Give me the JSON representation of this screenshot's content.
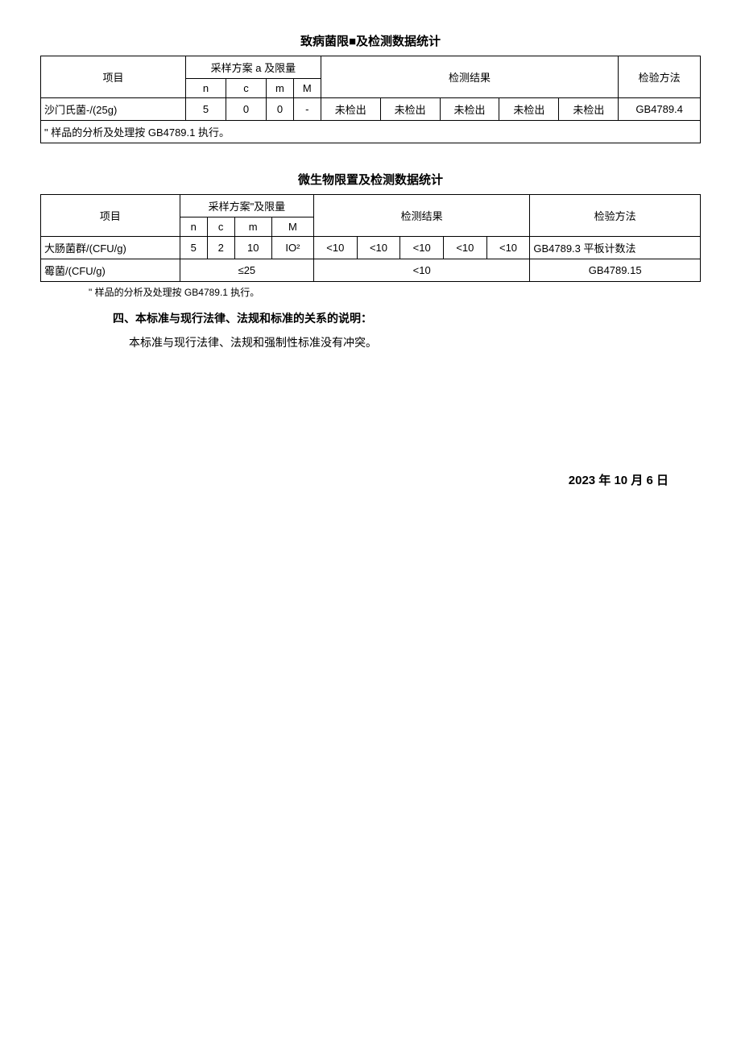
{
  "table1": {
    "title": "致病菌限■及检测数据统计",
    "headers": {
      "project": "项目",
      "sampling": "采样方案 a 及限量",
      "n": "n",
      "c": "c",
      "m": "m",
      "M": "M",
      "result": "检测结果",
      "method": "检验方法"
    },
    "row": {
      "name": "沙门氏菌-/(25g)",
      "n": "5",
      "c": "0",
      "m": "0",
      "M": "-",
      "r1": "未检出",
      "r2": "未检出",
      "r3": "未检出",
      "r4": "未检出",
      "r5": "未检出",
      "method": "GB4789.4"
    },
    "note": "\" 样品的分析及处理按 GB4789.1 执行。"
  },
  "table2": {
    "title": "微生物限置及检测数据统计",
    "headers": {
      "project": "项目",
      "sampling": "采样方案\"及限量",
      "n": "n",
      "c": "c",
      "m": "m",
      "M": "M",
      "result": "检测结果",
      "method": "检验方法"
    },
    "row1": {
      "name": "大肠菌群/(CFU/g)",
      "n": "5",
      "c": "2",
      "m": "10",
      "M": "IO²",
      "r1": "<10",
      "r2": "<10",
      "r3": "<10",
      "r4": "<10",
      "r5": "<10",
      "method": "GB4789.3 平板计数法"
    },
    "row2": {
      "name": "霉菌/(CFU/g)",
      "limit": "≤25",
      "result": "<10",
      "method": "GB4789.15"
    },
    "note": "\" 样品的分析及处理按 GB4789.1 执行。"
  },
  "section4": {
    "heading": "四、本标准与现行法律、法规和标准的关系的说明：",
    "para": "本标准与现行法律、法规和强制性标准没有冲突。"
  },
  "date": "2023 年 10 月 6 日"
}
